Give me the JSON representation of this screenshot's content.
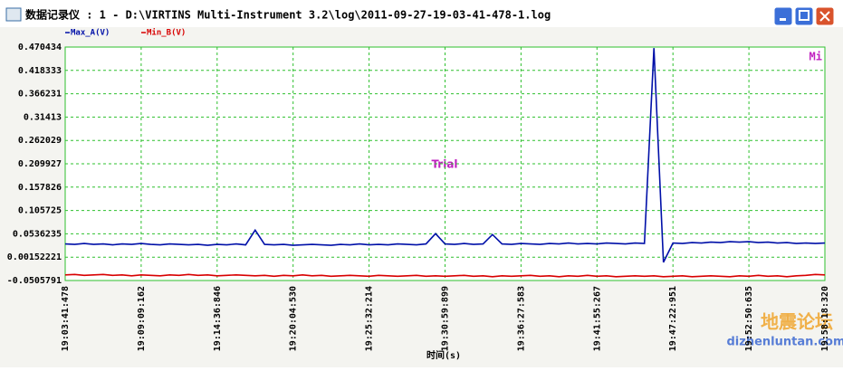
{
  "window": {
    "title": "数据记录仪 : 1 - D:\\VIRTINS Multi-Instrument 3.2\\log\\2011-09-27-19-03-41-478-1.log"
  },
  "watermark": {
    "cn": "地震论坛",
    "url": "dizhenluntan.com"
  },
  "chart_data": {
    "type": "line",
    "xlabel": "时间(s)",
    "annotation": "Trial",
    "badge": "Mi",
    "xticks": [
      "19:03:41:478",
      "19:09:09:162",
      "19:14:36:846",
      "19:20:04:530",
      "19:25:32:214",
      "19:30:59:899",
      "19:36:27:583",
      "19:41:55:267",
      "19:47:22:951",
      "19:52:50:635",
      "19:58:18:320"
    ],
    "ylim": [
      -0.0505791,
      0.470434
    ],
    "yticks": [
      0.470434,
      0.418333,
      0.366231,
      0.31413,
      0.262029,
      0.209927,
      0.157826,
      0.105725,
      0.0536235,
      0.00152221,
      -0.0505791
    ],
    "grid": true,
    "series": [
      {
        "name": "Max_A(V)",
        "color": "#0010a8",
        "values": [
          0.031,
          0.03,
          0.032,
          0.03,
          0.031,
          0.029,
          0.031,
          0.03,
          0.032,
          0.03,
          0.029,
          0.031,
          0.03,
          0.029,
          0.03,
          0.028,
          0.03,
          0.029,
          0.031,
          0.029,
          0.062,
          0.03,
          0.029,
          0.03,
          0.028,
          0.029,
          0.03,
          0.029,
          0.028,
          0.03,
          0.029,
          0.031,
          0.029,
          0.03,
          0.029,
          0.031,
          0.03,
          0.029,
          0.031,
          0.054,
          0.031,
          0.03,
          0.032,
          0.03,
          0.031,
          0.052,
          0.031,
          0.03,
          0.032,
          0.031,
          0.03,
          0.032,
          0.031,
          0.033,
          0.031,
          0.032,
          0.031,
          0.033,
          0.032,
          0.031,
          0.033,
          0.032,
          0.468,
          -0.01,
          0.033,
          0.032,
          0.034,
          0.033,
          0.035,
          0.034,
          0.036,
          0.035,
          0.036,
          0.034,
          0.035,
          0.033,
          0.034,
          0.032,
          0.033,
          0.032,
          0.033
        ]
      },
      {
        "name": "Min_B(V)",
        "color": "#d80000",
        "values": [
          -0.038,
          -0.037,
          -0.039,
          -0.038,
          -0.037,
          -0.039,
          -0.038,
          -0.04,
          -0.038,
          -0.039,
          -0.04,
          -0.038,
          -0.039,
          -0.037,
          -0.039,
          -0.038,
          -0.04,
          -0.039,
          -0.038,
          -0.039,
          -0.04,
          -0.039,
          -0.041,
          -0.039,
          -0.04,
          -0.038,
          -0.04,
          -0.039,
          -0.041,
          -0.04,
          -0.039,
          -0.04,
          -0.041,
          -0.039,
          -0.04,
          -0.041,
          -0.04,
          -0.039,
          -0.041,
          -0.04,
          -0.041,
          -0.04,
          -0.039,
          -0.041,
          -0.04,
          -0.042,
          -0.04,
          -0.041,
          -0.04,
          -0.039,
          -0.041,
          -0.04,
          -0.042,
          -0.04,
          -0.041,
          -0.039,
          -0.041,
          -0.04,
          -0.042,
          -0.041,
          -0.04,
          -0.041,
          -0.04,
          -0.042,
          -0.041,
          -0.04,
          -0.042,
          -0.041,
          -0.04,
          -0.041,
          -0.042,
          -0.04,
          -0.041,
          -0.039,
          -0.041,
          -0.04,
          -0.042,
          -0.04,
          -0.039,
          -0.037,
          -0.038
        ]
      }
    ]
  }
}
